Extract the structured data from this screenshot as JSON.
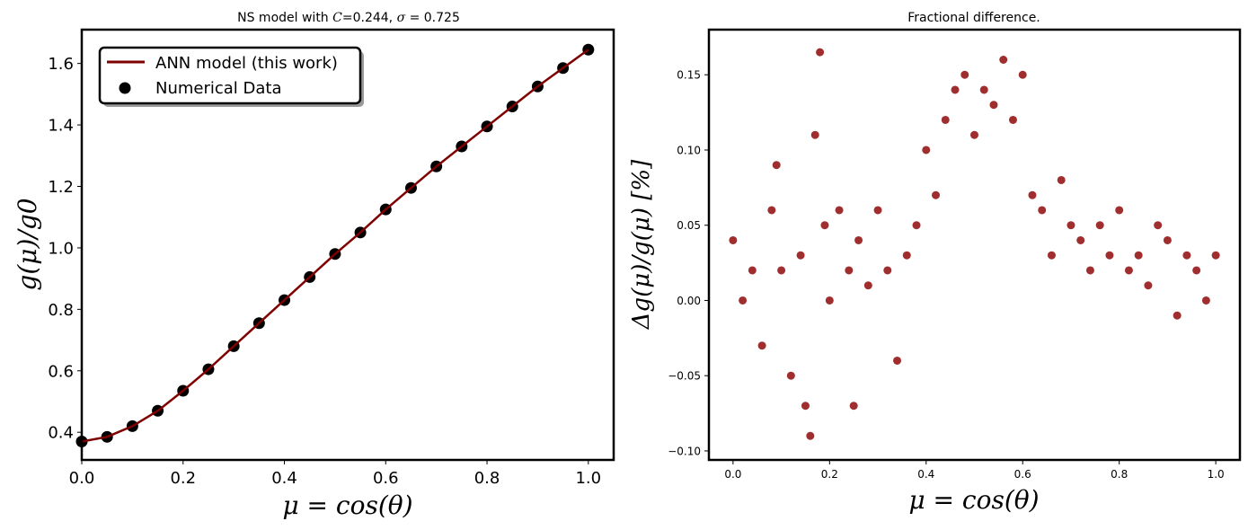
{
  "chart_data": [
    {
      "type": "line",
      "title": "NS model with C=0.244, σ = 0.725",
      "title_parts": {
        "prefix": "NS model with ",
        "c_symbol": "C",
        "c_value": "=0.244, ",
        "sigma_symbol": "σ",
        "sigma_value": " = 0.725"
      },
      "xlabel": "μ = cos(θ)",
      "ylabel": "g(μ)/g0",
      "xlim": [
        0.0,
        1.05
      ],
      "ylim": [
        0.31,
        1.71
      ],
      "xticks": [
        0.0,
        0.2,
        0.4,
        0.6,
        0.8,
        1.0
      ],
      "xtick_labels": [
        "0.0",
        "0.2",
        "0.4",
        "0.6",
        "0.8",
        "1.0"
      ],
      "yticks": [
        0.4,
        0.6,
        0.8,
        1.0,
        1.2,
        1.4,
        1.6
      ],
      "ytick_labels": [
        "0.4",
        "0.6",
        "0.8",
        "1.0",
        "1.2",
        "1.4",
        "1.6"
      ],
      "grid": false,
      "legend_position": "top-left",
      "series": [
        {
          "name": "ANN model (this work)",
          "kind": "line",
          "color": "#7f0000",
          "x": [
            0.0,
            0.05,
            0.1,
            0.15,
            0.2,
            0.25,
            0.3,
            0.35,
            0.4,
            0.45,
            0.5,
            0.55,
            0.6,
            0.65,
            0.7,
            0.75,
            0.8,
            0.85,
            0.9,
            0.95,
            1.0
          ],
          "y": [
            0.37,
            0.385,
            0.42,
            0.47,
            0.535,
            0.605,
            0.68,
            0.755,
            0.83,
            0.905,
            0.98,
            1.05,
            1.125,
            1.195,
            1.265,
            1.33,
            1.395,
            1.46,
            1.525,
            1.585,
            1.645
          ]
        },
        {
          "name": "Numerical Data",
          "kind": "scatter",
          "color": "#000000",
          "x": [
            0.0,
            0.05,
            0.1,
            0.15,
            0.2,
            0.25,
            0.3,
            0.35,
            0.4,
            0.45,
            0.5,
            0.55,
            0.6,
            0.65,
            0.7,
            0.75,
            0.8,
            0.85,
            0.9,
            0.95,
            1.0
          ],
          "y": [
            0.37,
            0.385,
            0.42,
            0.47,
            0.535,
            0.605,
            0.68,
            0.755,
            0.83,
            0.905,
            0.98,
            1.05,
            1.125,
            1.195,
            1.265,
            1.33,
            1.395,
            1.46,
            1.525,
            1.585,
            1.645
          ]
        }
      ]
    },
    {
      "type": "scatter",
      "title": "Fractional difference.",
      "xlabel": "μ = cos(θ)",
      "ylabel": "Δg(μ)/g(μ)  [%]",
      "xlim": [
        -0.05,
        1.05
      ],
      "ylim": [
        -0.106,
        0.18
      ],
      "xticks": [
        0.0,
        0.2,
        0.4,
        0.6,
        0.8,
        1.0
      ],
      "xtick_labels": [
        "0.0",
        "0.2",
        "0.4",
        "0.6",
        "0.8",
        "1.0"
      ],
      "yticks": [
        -0.1,
        -0.05,
        0.0,
        0.05,
        0.1,
        0.15
      ],
      "ytick_labels": [
        "−0.10",
        "−0.05",
        "0.00",
        "0.05",
        "0.10",
        "0.15"
      ],
      "grid": false,
      "series": [
        {
          "color": "#8b0000",
          "x": [
            0.0,
            0.02,
            0.04,
            0.06,
            0.08,
            0.09,
            0.1,
            0.12,
            0.14,
            0.15,
            0.16,
            0.17,
            0.18,
            0.19,
            0.2,
            0.22,
            0.24,
            0.25,
            0.26,
            0.28,
            0.3,
            0.32,
            0.34,
            0.36,
            0.38,
            0.4,
            0.42,
            0.44,
            0.46,
            0.48,
            0.5,
            0.52,
            0.54,
            0.56,
            0.58,
            0.6,
            0.62,
            0.64,
            0.66,
            0.68,
            0.7,
            0.72,
            0.74,
            0.76,
            0.78,
            0.8,
            0.82,
            0.84,
            0.86,
            0.88,
            0.9,
            0.92,
            0.94,
            0.96,
            0.98,
            1.0
          ],
          "y": [
            0.04,
            0.0,
            0.02,
            -0.03,
            0.06,
            0.09,
            0.02,
            -0.05,
            0.03,
            -0.07,
            -0.09,
            0.11,
            0.165,
            0.05,
            0.0,
            0.06,
            0.02,
            -0.07,
            0.04,
            0.01,
            0.06,
            0.02,
            -0.04,
            0.03,
            0.05,
            0.1,
            0.07,
            0.12,
            0.14,
            0.15,
            0.11,
            0.14,
            0.13,
            0.16,
            0.12,
            0.15,
            0.07,
            0.06,
            0.03,
            0.08,
            0.05,
            0.04,
            0.02,
            0.05,
            0.03,
            0.06,
            0.02,
            0.03,
            0.01,
            0.05,
            0.04,
            -0.01,
            0.03,
            0.02,
            0.0,
            0.03
          ]
        }
      ]
    }
  ]
}
